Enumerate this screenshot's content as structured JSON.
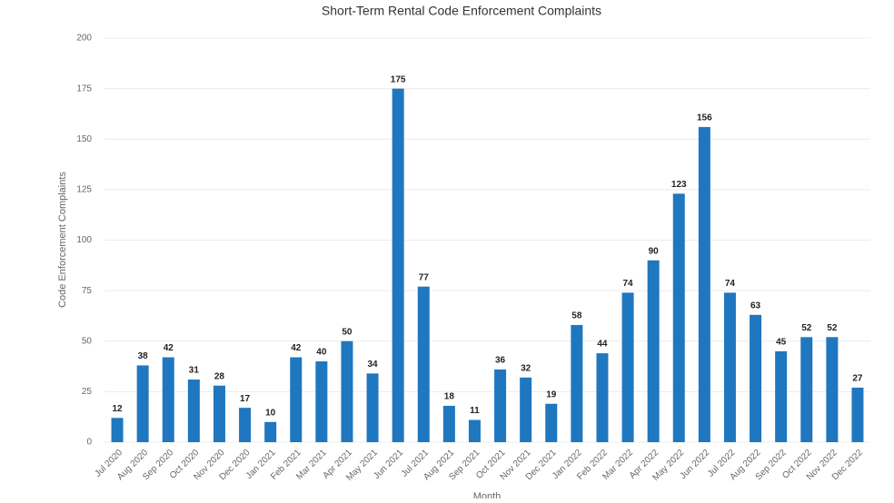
{
  "chart_data": {
    "type": "bar",
    "title": "Short-Term Rental Code Enforcement Complaints",
    "xlabel": "Month",
    "ylabel": "Code Enforcement Complaints",
    "categories": [
      "Jul 2020",
      "Aug 2020",
      "Sep 2020",
      "Oct 2020",
      "Nov 2020",
      "Dec 2020",
      "Jan 2021",
      "Feb 2021",
      "Mar 2021",
      "Apr 2021",
      "May 2021",
      "Jun 2021",
      "Jul 2021",
      "Aug 2021",
      "Sep 2021",
      "Oct 2021",
      "Nov 2021",
      "Dec 2021",
      "Jan 2022",
      "Feb 2022",
      "Mar 2022",
      "Apr 2022",
      "May 2022",
      "Jun 2022",
      "Jul 2022",
      "Aug 2022",
      "Sep 2022",
      "Oct 2022",
      "Nov 2022",
      "Dec 2022"
    ],
    "values": [
      12,
      38,
      42,
      31,
      28,
      17,
      10,
      42,
      40,
      50,
      34,
      175,
      77,
      18,
      11,
      36,
      32,
      19,
      58,
      44,
      74,
      90,
      123,
      156,
      74,
      63,
      45,
      52,
      52,
      27
    ],
    "color": "#1f77c0",
    "ylim": [
      0,
      200
    ],
    "yticks": [
      0,
      25,
      50,
      75,
      100,
      125,
      150,
      175,
      200
    ],
    "grid": true
  }
}
